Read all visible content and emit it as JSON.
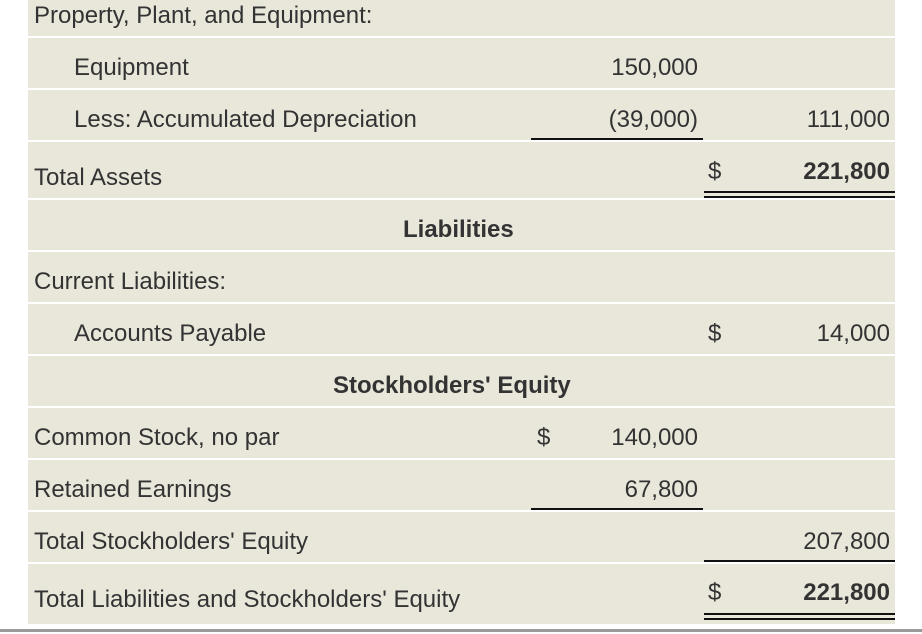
{
  "rows": {
    "ppe_header": {
      "label": "Property, Plant, and Equipment:"
    },
    "equipment": {
      "label": "Equipment",
      "amount": "150,000"
    },
    "accum_dep": {
      "label": "Less: Accumulated Depreciation",
      "amount": "(39,000)",
      "total": "111,000"
    },
    "total_assets": {
      "label": "Total Assets",
      "currency": "$",
      "total": "221,800"
    },
    "liabilities_header": {
      "label": "Liabilities"
    },
    "current_liabilities": {
      "label": "Current Liabilities:"
    },
    "accounts_payable": {
      "label": "Accounts Payable",
      "currency": "$",
      "total": "14,000"
    },
    "equity_header": {
      "label": "Stockholders' Equity"
    },
    "common_stock": {
      "label": "Common Stock, no par",
      "currency": "$",
      "amount": "140,000"
    },
    "retained_earnings": {
      "label": "Retained Earnings",
      "amount": "67,800"
    },
    "total_equity": {
      "label": "Total Stockholders' Equity",
      "total": "207,800"
    },
    "total_liab_equity": {
      "label": "Total Liabilities and Stockholders' Equity",
      "currency": "$",
      "total": "221,800"
    }
  }
}
